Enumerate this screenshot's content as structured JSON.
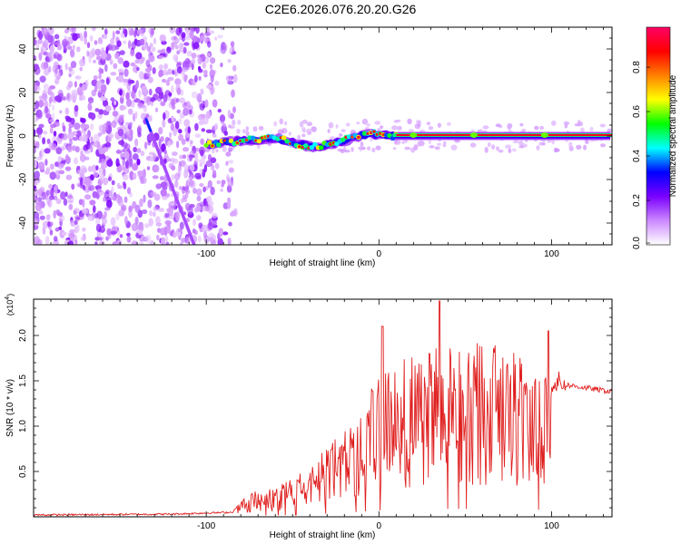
{
  "title": "C2E6.2026.076.20.20.G26",
  "chart_data": [
    {
      "type": "heatmap",
      "name": "spectrogram",
      "xlabel": "Height of straight line (km)",
      "ylabel": "Frequency (Hz)",
      "xlim": [
        -200,
        135
      ],
      "ylim": [
        -50,
        50
      ],
      "xticks": [
        -100,
        0,
        100
      ],
      "yticks": [
        -40,
        -20,
        0,
        20,
        40
      ],
      "colorbar": {
        "label": "Normalized spectral amplitude",
        "range": [
          0,
          1
        ],
        "ticks": [
          "0.0",
          "0.2",
          "0.4",
          "0.6",
          "0.8"
        ],
        "colors": [
          "#ffffff",
          "#cc88ff",
          "#7a00ff",
          "#0000ff",
          "#00ffff",
          "#00ff00",
          "#ffff00",
          "#ff8000",
          "#ff0000",
          "#ff0066"
        ]
      },
      "features": {
        "noise_region_x": [
          -200,
          -95
        ],
        "carrier_trace": [
          [
            -100,
            -4
          ],
          [
            -90,
            -3
          ],
          [
            -75,
            -2
          ],
          [
            -60,
            -1
          ],
          [
            -45,
            -4
          ],
          [
            -35,
            -5
          ],
          [
            -20,
            -2
          ],
          [
            -5,
            1
          ],
          [
            10,
            0
          ],
          [
            40,
            0
          ],
          [
            100,
            0
          ],
          [
            135,
            0
          ]
        ],
        "diagonal_streak": [
          [
            -135,
            8
          ],
          [
            -107,
            -50
          ]
        ]
      }
    },
    {
      "type": "line",
      "name": "snr",
      "xlabel": "Height of straight line (km)",
      "ylabel": "SNR (10 * v/v)",
      "ylabel_exponent": "(x10",
      "exponent_power": "4",
      "xlim": [
        -200,
        135
      ],
      "ylim": [
        0,
        2.4
      ],
      "xticks": [
        -100,
        0,
        100
      ],
      "yticks": [
        "0.5",
        "1.0",
        "1.5",
        "2.0"
      ],
      "series": [
        {
          "name": "SNR",
          "color": "#e02020",
          "envelope": [
            [
              -200,
              0.02
            ],
            [
              -120,
              0.03
            ],
            [
              -85,
              0.05
            ],
            [
              -75,
              0.25
            ],
            [
              -60,
              0.3
            ],
            [
              -45,
              0.45
            ],
            [
              -30,
              0.7
            ],
            [
              -15,
              1.0
            ],
            [
              0,
              1.4
            ],
            [
              15,
              1.6
            ],
            [
              30,
              1.7
            ],
            [
              45,
              1.75
            ],
            [
              60,
              1.75
            ],
            [
              75,
              1.7
            ],
            [
              90,
              1.55
            ],
            [
              100,
              1.5
            ],
            [
              110,
              1.45
            ],
            [
              135,
              1.38
            ]
          ],
          "peaks": [
            [
              2,
              2.1
            ],
            [
              35,
              2.38
            ],
            [
              98,
              2.05
            ]
          ]
        }
      ]
    }
  ]
}
